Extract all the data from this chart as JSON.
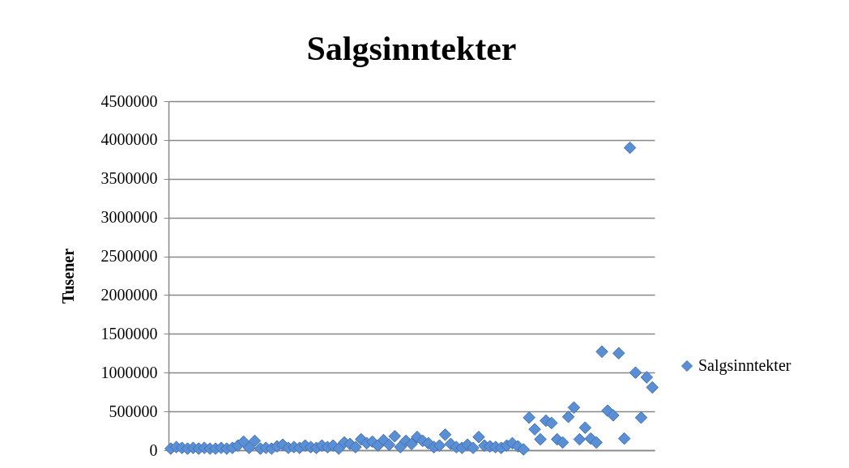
{
  "chart_data": {
    "type": "scatter",
    "title": "Salgsinntekter",
    "ylabel": "Tusener",
    "categories": [
      null,
      null,
      null,
      null,
      null,
      null,
      null,
      null,
      null,
      null,
      null,
      null,
      null,
      null,
      null,
      null,
      null,
      null,
      null,
      null,
      null,
      null,
      null,
      null,
      null,
      null,
      null,
      null,
      null,
      null,
      null,
      null,
      null,
      null,
      null,
      null,
      null,
      null,
      null,
      null,
      null,
      null,
      null,
      null,
      null,
      null,
      null,
      null,
      null,
      null,
      null,
      null,
      null,
      null,
      null,
      null,
      null,
      null,
      null,
      null,
      null,
      null,
      null,
      null,
      null,
      null,
      null,
      null,
      null,
      null,
      null,
      null,
      null,
      null,
      null,
      null,
      null,
      null,
      null,
      null,
      null,
      null,
      null,
      null,
      null,
      null,
      null
    ],
    "series": [
      {
        "name": "Salgsinntekter",
        "color": "#5b8fd5",
        "values": [
          20000,
          40000,
          30000,
          20000,
          30000,
          20000,
          30000,
          20000,
          20000,
          30000,
          20000,
          30000,
          60000,
          110000,
          30000,
          120000,
          20000,
          30000,
          20000,
          50000,
          70000,
          30000,
          40000,
          30000,
          60000,
          40000,
          30000,
          60000,
          40000,
          60000,
          20000,
          100000,
          80000,
          40000,
          140000,
          90000,
          110000,
          60000,
          130000,
          70000,
          180000,
          40000,
          120000,
          80000,
          170000,
          120000,
          90000,
          40000,
          60000,
          200000,
          80000,
          40000,
          30000,
          70000,
          30000,
          170000,
          60000,
          50000,
          40000,
          30000,
          60000,
          90000,
          50000,
          10000,
          420000,
          270000,
          140000,
          380000,
          350000,
          140000,
          100000,
          430000,
          550000,
          140000,
          290000,
          150000,
          100000,
          1270000,
          510000,
          450000,
          1250000,
          150000,
          3900000,
          1000000,
          420000,
          940000,
          810000
        ]
      }
    ],
    "ylim": [
      0,
      4500000
    ],
    "yticks": [
      0,
      500000,
      1000000,
      1500000,
      2000000,
      2500000,
      3000000,
      3500000,
      4000000,
      4500000
    ],
    "grid": "y",
    "legend": "right",
    "marker": "diamond",
    "tick_labels": "y"
  }
}
